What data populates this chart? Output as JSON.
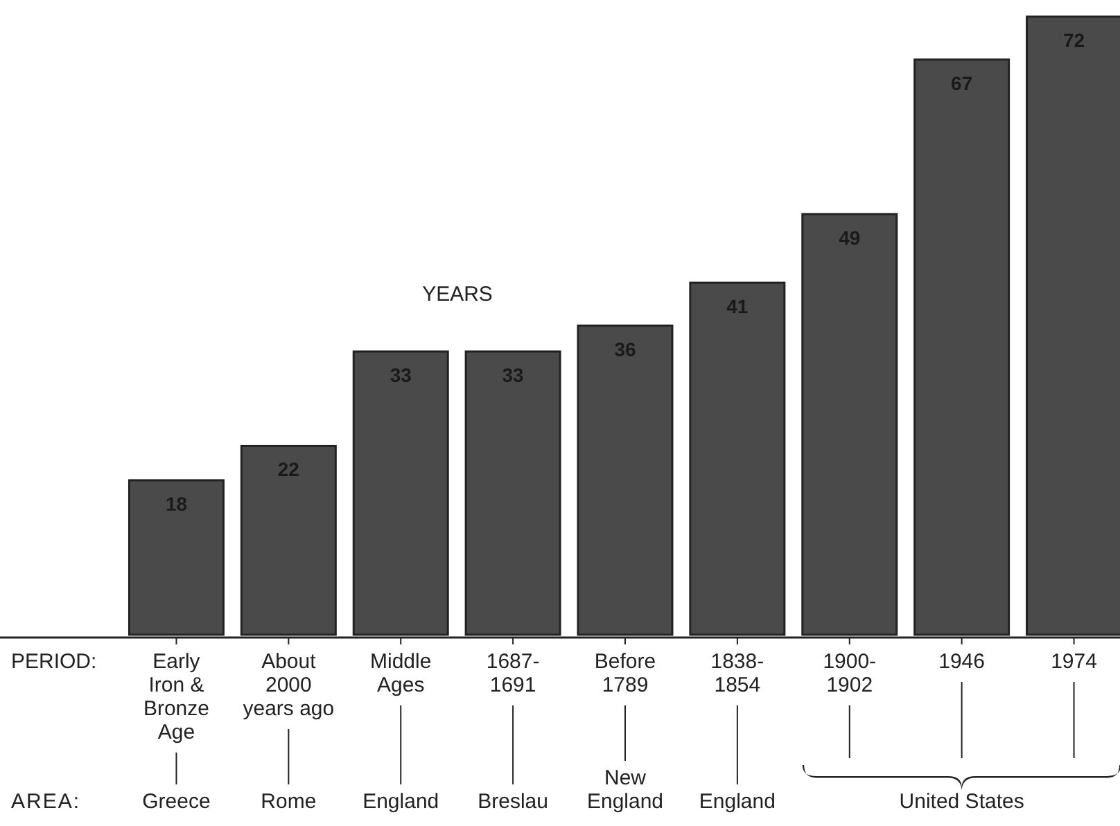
{
  "chart_data": {
    "type": "bar",
    "ylabel": "YEARS",
    "categories": [
      "Early\nIron &\nBronze\nAge",
      "About\n2000\nyears ago",
      "Middle\nAges",
      "1687-\n1691",
      "Before\n1789",
      "1838-\n1854",
      "1900-\n1902",
      "1946",
      "1974"
    ],
    "values": [
      18,
      22,
      33,
      33,
      36,
      41,
      49,
      67,
      72
    ],
    "color": "#4a4a4a",
    "data_labels": true,
    "annotations": [
      "PERIOD:",
      "AREA:",
      "Greece",
      "Rome",
      "England",
      "Breslau",
      "New\nEngland",
      "England",
      "United States"
    ]
  }
}
